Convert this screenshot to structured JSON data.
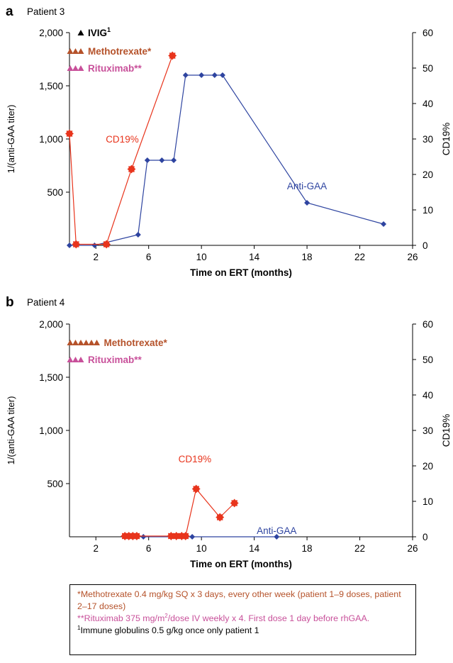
{
  "colors": {
    "anti_gaa": "#2e44a0",
    "cd19": "#e8341c",
    "methotrexate": "#b5522a",
    "rituximab": "#c8509a",
    "ivig": "#000000",
    "axis": "#000000"
  },
  "chart_data": [
    {
      "type": "line",
      "panel_letter": "a",
      "panel_title": "Patient 3",
      "xlabel": "Time on ERT (months)",
      "ylabel": "1/(anti-GAA titer)",
      "ylabel_right": "CD19%",
      "xlim": [
        0,
        26
      ],
      "ylim": [
        0,
        2000
      ],
      "ylim_right": [
        0,
        60
      ],
      "xticks": [
        2,
        6,
        10,
        14,
        18,
        22,
        26
      ],
      "yticks": [
        500,
        1000,
        1500,
        2000
      ],
      "ytick_labels": [
        "500",
        "1,000",
        "1,500",
        "2,000"
      ],
      "yticks_right": [
        0,
        10,
        20,
        30,
        40,
        50,
        60
      ],
      "legend": {
        "ivig": {
          "label": "IVIG",
          "sup": "1",
          "marker_count": 1
        },
        "methotrexate": {
          "label": "Methotrexate*",
          "marker_count": 3
        },
        "rituximab": {
          "label": "Rituximab**",
          "marker_count": 3
        }
      },
      "series": [
        {
          "name": "Anti-GAA",
          "axis": "left",
          "x": [
            0,
            1.9,
            5.2,
            5.9,
            7.0,
            7.9,
            8.8,
            10.0,
            11.0,
            11.6,
            18.0,
            23.8
          ],
          "y": [
            0,
            0,
            100,
            800,
            800,
            800,
            1600,
            1600,
            1600,
            1600,
            400,
            200
          ]
        },
        {
          "name": "CD19%",
          "axis": "right",
          "x": [
            0,
            0.5,
            2.8,
            4.7,
            7.8
          ],
          "y": [
            31.5,
            0.3,
            0.3,
            21.5,
            53.5
          ]
        }
      ],
      "annotations": [
        {
          "text": "CD19%",
          "series": "CD19%",
          "x": 4.0,
          "y_right": 30
        },
        {
          "text": "Anti-GAA",
          "series": "Anti-GAA",
          "x": 18,
          "y": 560
        }
      ]
    },
    {
      "type": "line",
      "panel_letter": "b",
      "panel_title": "Patient 4",
      "xlabel": "Time on ERT (months)",
      "ylabel": "1/(anti-GAA titer)",
      "ylabel_right": "CD19%",
      "xlim": [
        0,
        26
      ],
      "ylim": [
        0,
        2000
      ],
      "ylim_right": [
        0,
        60
      ],
      "xticks": [
        2,
        6,
        10,
        14,
        18,
        22,
        26
      ],
      "yticks": [
        500,
        1000,
        1500,
        2000
      ],
      "ytick_labels": [
        "500",
        "1,000",
        "1,500",
        "2,000"
      ],
      "yticks_right": [
        0,
        10,
        20,
        30,
        40,
        50,
        60
      ],
      "legend": {
        "methotrexate": {
          "label": "Methotrexate*",
          "marker_count": 6
        },
        "rituximab": {
          "label": "Rituximab**",
          "marker_count": 3
        }
      },
      "series": [
        {
          "name": "Anti-GAA",
          "axis": "left",
          "x": [
            5.6,
            9.3,
            15.7
          ],
          "y": [
            0,
            0,
            0
          ]
        },
        {
          "name": "CD19%",
          "axis": "right",
          "x": [
            4.2,
            4.5,
            4.8,
            5.1,
            7.7,
            8.1,
            8.5,
            8.8,
            9.6,
            11.4,
            12.5
          ],
          "y": [
            0.2,
            0.2,
            0.2,
            0.2,
            0.2,
            0.2,
            0.2,
            0.2,
            13.5,
            5.5,
            9.5
          ]
        }
      ],
      "annotations": [
        {
          "text": "CD19%",
          "series": "CD19%",
          "x": 9.5,
          "y_right": 22
        },
        {
          "text": "Anti-GAA",
          "series": "Anti-GAA",
          "x": 15.7,
          "y": 60
        }
      ]
    }
  ],
  "notes": {
    "methotrexate": "*Methotrexate 0.4 mg/kg SQ x 3 days, every other week (patient 1–9 doses, patient 2–17 doses)",
    "rituximab_prefix": "**Rituximab 375 mg/m",
    "rituximab_sup": "2",
    "rituximab_suffix": "/dose IV weekly x 4. First dose 1 day before rhGAA.",
    "ivig_sup": "1",
    "ivig": "Immune globulins 0.5 g/kg once only patient 1"
  }
}
